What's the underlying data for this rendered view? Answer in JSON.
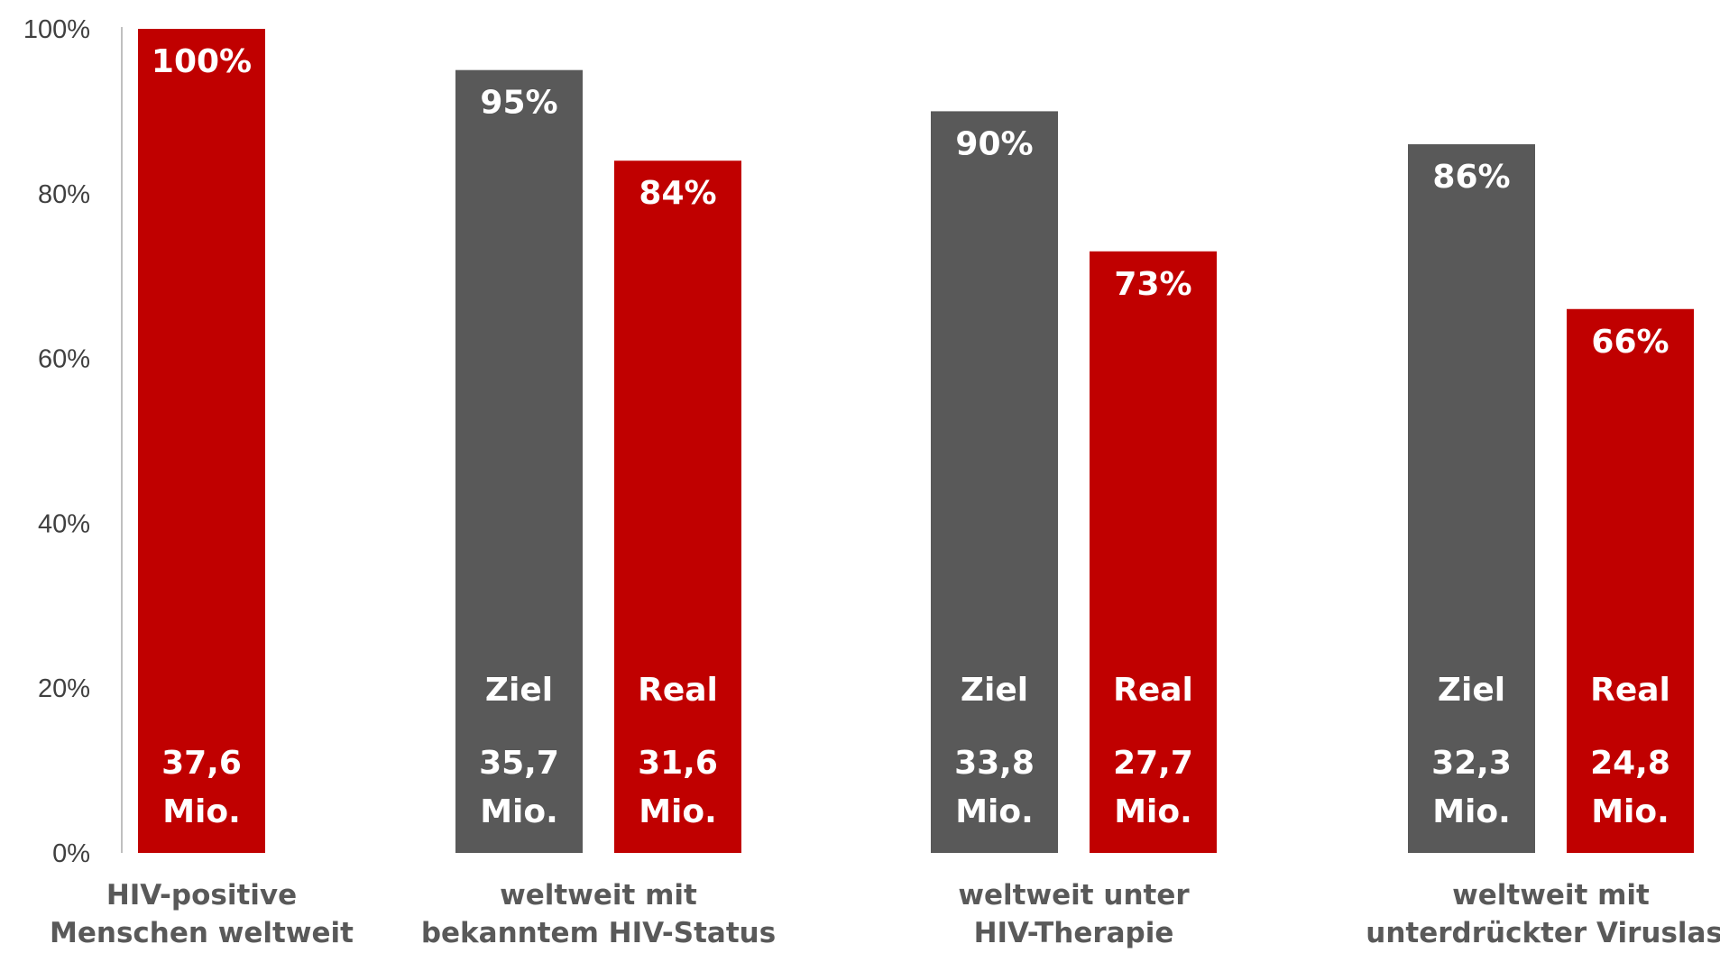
{
  "chart_data": {
    "type": "bar",
    "ylim": [
      0,
      100
    ],
    "yticks": [
      0,
      20,
      40,
      60,
      80,
      100
    ],
    "ytick_suffix": "%",
    "colors": {
      "real": "#c00000",
      "ziel": "#595959",
      "text": "#ffffff",
      "axis_text": "#404040",
      "category_text": "#595959"
    },
    "groups": [
      {
        "category": [
          "HIV-positive",
          "Menschen weltweit"
        ],
        "bars": [
          {
            "series": "real",
            "value": 100,
            "label": "100%",
            "name": "",
            "count": [
              "37,6",
              "Mio."
            ]
          }
        ]
      },
      {
        "category": [
          "weltweit mit",
          "bekanntem HIV-Status"
        ],
        "bars": [
          {
            "series": "ziel",
            "value": 95,
            "label": "95%",
            "name": "Ziel",
            "count": [
              "35,7",
              "Mio."
            ]
          },
          {
            "series": "real",
            "value": 84,
            "label": "84%",
            "name": "Real",
            "count": [
              "31,6",
              "Mio."
            ]
          }
        ]
      },
      {
        "category": [
          "weltweit unter",
          "HIV-Therapie"
        ],
        "bars": [
          {
            "series": "ziel",
            "value": 90,
            "label": "90%",
            "name": "Ziel",
            "count": [
              "33,8",
              "Mio."
            ]
          },
          {
            "series": "real",
            "value": 73,
            "label": "73%",
            "name": "Real",
            "count": [
              "27,7",
              "Mio."
            ]
          }
        ]
      },
      {
        "category": [
          "weltweit mit",
          "unterdrückter Viruslast"
        ],
        "bars": [
          {
            "series": "ziel",
            "value": 86,
            "label": "86%",
            "name": "Ziel",
            "count": [
              "32,3",
              "Mio."
            ]
          },
          {
            "series": "real",
            "value": 66,
            "label": "66%",
            "name": "Real",
            "count": [
              "24,8",
              "Mio."
            ]
          }
        ]
      }
    ]
  }
}
